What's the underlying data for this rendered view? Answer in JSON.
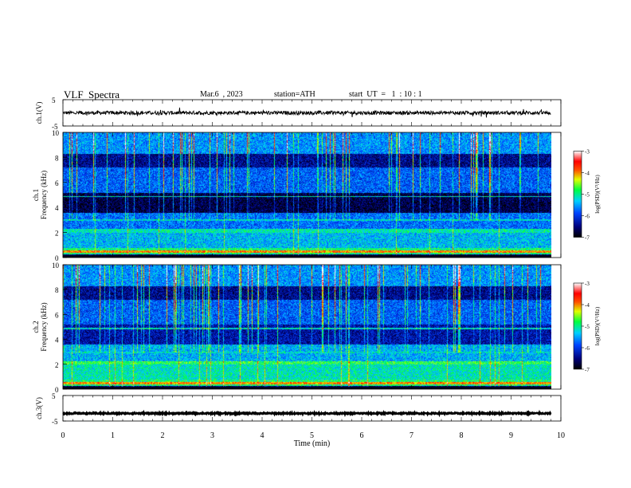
{
  "header": {
    "title": "VLF  Spectra",
    "date": "Mar.6  , 2023",
    "station": "station=ATH",
    "start": "start  UT  =   1  : 10 : 1"
  },
  "chart_data": [
    {
      "type": "line",
      "ylabel": "ch.1(V)",
      "ylim": [
        -5,
        5
      ],
      "yticks": [
        "5",
        "-5"
      ],
      "xlim": [
        0,
        10
      ],
      "series": [
        {
          "mean": 0,
          "noise": 0.7,
          "color": "#000000"
        }
      ]
    },
    {
      "type": "heatmap",
      "ylabel": "Frequency  (kHz)",
      "ylabel2": "ch.1",
      "ylim": [
        0,
        10
      ],
      "yticks": [
        "0",
        "2",
        "4",
        "6",
        "8",
        "10"
      ],
      "xlim": [
        0,
        10
      ],
      "data_end_min": 9.8,
      "colorbar": {
        "label": "log(PSD)(V²/Hz)",
        "ticks": [
          "-3",
          "-4",
          "-5",
          "-6",
          "-7"
        ],
        "range": [
          -7,
          -3
        ]
      }
    },
    {
      "type": "heatmap",
      "ylabel": "Frequency  (kHz)",
      "ylabel2": "ch.2",
      "ylim": [
        0,
        10
      ],
      "yticks": [
        "0",
        "2",
        "4",
        "6",
        "8",
        "10"
      ],
      "xlim": [
        0,
        10
      ],
      "data_end_min": 9.8,
      "colorbar": {
        "label": "log(PSD)(V²/Hz)",
        "ticks": [
          "-3",
          "-4",
          "-5",
          "-6",
          "-7"
        ],
        "range": [
          -7,
          -3
        ]
      }
    },
    {
      "type": "line",
      "ylabel": "ch.3(V)",
      "ylim": [
        -5,
        5
      ],
      "yticks": [
        "5",
        "-5"
      ],
      "xlim": [
        0,
        10
      ],
      "xlabel": "Time  (min)",
      "xticks": [
        "0",
        "1",
        "2",
        "3",
        "4",
        "5",
        "6",
        "7",
        "8",
        "9",
        "10"
      ],
      "series": [
        {
          "mean": -2,
          "noise": 0.25,
          "color": "#000000"
        }
      ]
    }
  ]
}
